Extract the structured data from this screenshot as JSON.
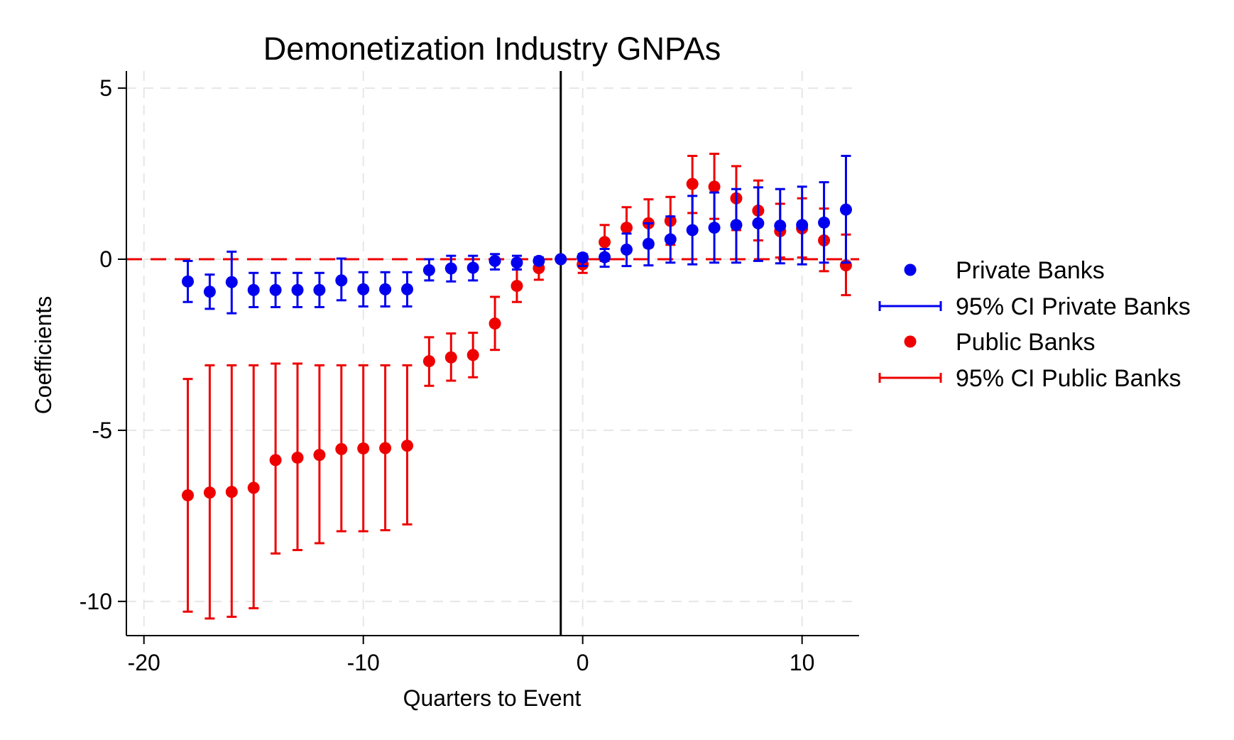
{
  "chart_data": {
    "type": "scatter",
    "title": "Demonetization Industry GNPAs",
    "xlabel": "Quarters to Event",
    "ylabel": "Coefficients",
    "xlim": [
      -20.8,
      12.6
    ],
    "ylim": [
      -11.0,
      5.5
    ],
    "xticks": [
      -20,
      -10,
      0,
      10
    ],
    "yticks": [
      5,
      0,
      -5,
      -10
    ],
    "grid": true,
    "reference_lines": {
      "horizontal_y": 0,
      "vertical_x": -1
    },
    "legend_position": "right",
    "colors": {
      "private": "#0000ee",
      "public": "#ee0000",
      "event_line": "#000000"
    },
    "series": [
      {
        "name": "Private Banks",
        "ci_name": "95% CI Private Banks",
        "color": "#0000ee",
        "x": [
          -18,
          -17,
          -16,
          -15,
          -14,
          -13,
          -12,
          -11,
          -10,
          -9,
          -8,
          -7,
          -6,
          -5,
          -4,
          -3,
          -2,
          -1,
          0,
          1,
          2,
          3,
          4,
          5,
          6,
          7,
          8,
          9,
          10,
          11,
          12
        ],
        "y": [
          -0.65,
          -0.95,
          -0.67,
          -0.9,
          -0.9,
          -0.9,
          -0.9,
          -0.62,
          -0.88,
          -0.88,
          -0.88,
          -0.32,
          -0.27,
          -0.25,
          -0.05,
          -0.1,
          -0.05,
          0,
          0.05,
          0.06,
          0.28,
          0.45,
          0.58,
          0.85,
          0.92,
          1.0,
          1.05,
          0.98,
          1.0,
          1.07,
          1.45
        ],
        "lo": [
          -1.25,
          -1.45,
          -1.58,
          -1.4,
          -1.4,
          -1.4,
          -1.4,
          -1.2,
          -1.38,
          -1.38,
          -1.38,
          -0.62,
          -0.65,
          -0.62,
          -0.3,
          -0.3,
          -0.12,
          0,
          -0.2,
          -0.22,
          -0.2,
          -0.18,
          -0.1,
          -0.15,
          -0.1,
          -0.1,
          -0.05,
          -0.12,
          -0.15,
          -0.1,
          -0.1
        ],
        "hi": [
          -0.05,
          -0.45,
          0.22,
          -0.4,
          -0.4,
          -0.4,
          -0.4,
          0.02,
          -0.38,
          -0.38,
          -0.38,
          0.0,
          0.1,
          0.1,
          0.15,
          0.1,
          0.05,
          0,
          0.15,
          0.3,
          0.75,
          1.05,
          1.25,
          1.85,
          1.95,
          2.05,
          2.1,
          2.05,
          2.12,
          2.25,
          3.02
        ]
      },
      {
        "name": "Public Banks",
        "ci_name": "95% CI Public Banks",
        "color": "#ee0000",
        "x": [
          -18,
          -17,
          -16,
          -15,
          -14,
          -13,
          -12,
          -11,
          -10,
          -9,
          -8,
          -7,
          -6,
          -5,
          -4,
          -3,
          -2,
          -1,
          0,
          1,
          2,
          3,
          4,
          5,
          6,
          7,
          8,
          9,
          10,
          11,
          12
        ],
        "y": [
          -6.9,
          -6.82,
          -6.8,
          -6.68,
          -5.87,
          -5.8,
          -5.72,
          -5.55,
          -5.53,
          -5.52,
          -5.45,
          -2.98,
          -2.87,
          -2.8,
          -1.88,
          -0.78,
          -0.26,
          0,
          -0.15,
          0.5,
          0.92,
          1.05,
          1.12,
          2.2,
          2.12,
          1.78,
          1.42,
          0.82,
          0.9,
          0.55,
          -0.18
        ],
        "lo": [
          -10.3,
          -10.5,
          -10.45,
          -10.2,
          -8.6,
          -8.5,
          -8.3,
          -7.95,
          -7.95,
          -7.92,
          -7.75,
          -3.7,
          -3.55,
          -3.45,
          -2.65,
          -1.25,
          -0.6,
          0,
          -0.4,
          -0.05,
          0.28,
          0.35,
          0.42,
          1.35,
          1.18,
          0.85,
          0.55,
          0.05,
          0.05,
          -0.35,
          -1.05
        ],
        "hi": [
          -3.5,
          -3.1,
          -3.1,
          -3.1,
          -3.05,
          -3.05,
          -3.1,
          -3.1,
          -3.1,
          -3.1,
          -3.1,
          -2.28,
          -2.17,
          -2.15,
          -1.1,
          -0.3,
          0.05,
          0,
          0.1,
          1.0,
          1.52,
          1.75,
          1.82,
          3.02,
          3.08,
          2.72,
          2.3,
          1.62,
          1.78,
          1.48,
          0.72
        ]
      }
    ]
  }
}
